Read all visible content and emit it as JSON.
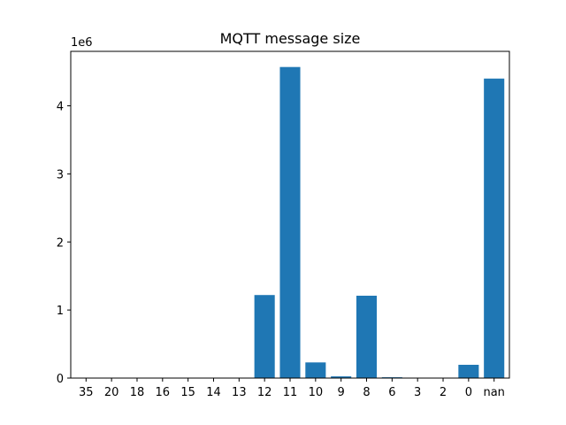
{
  "chart_data": {
    "type": "bar",
    "title": "MQTT message size",
    "xlabel": "",
    "ylabel": "",
    "y_offset_label": "1e6",
    "categories": [
      "35",
      "20",
      "18",
      "16",
      "15",
      "14",
      "13",
      "12",
      "11",
      "10",
      "9",
      "8",
      "6",
      "3",
      "2",
      "0",
      "nan"
    ],
    "values": [
      0,
      0,
      0,
      0,
      0,
      0,
      0,
      1220000,
      4570000,
      230000,
      25000,
      1210000,
      12000,
      0,
      0,
      195000,
      4400000
    ],
    "ylim": [
      0,
      4800000
    ],
    "yticks": [
      0,
      1000000,
      2000000,
      3000000,
      4000000
    ],
    "ytick_labels": [
      "0",
      "1",
      "2",
      "3",
      "4"
    ],
    "bar_color": "#1f77b4",
    "grid": false,
    "legend": "none"
  }
}
